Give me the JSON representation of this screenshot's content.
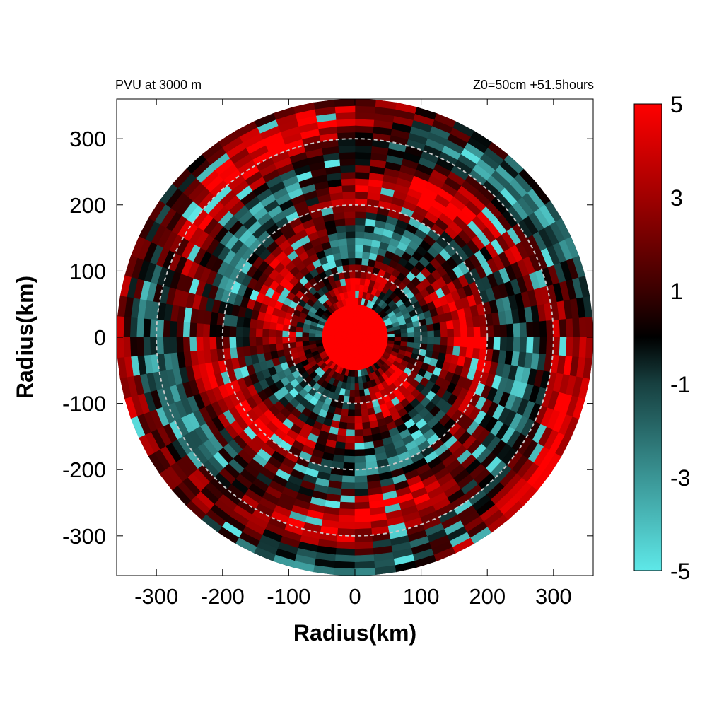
{
  "chart_data": {
    "type": "heatmap",
    "title_left": "PVU at  3000 m",
    "title_right": "Z0=50cm  +51.5hours",
    "xlabel": "Radius(km)",
    "ylabel": "Radius(km)",
    "xlim": [
      -360,
      360
    ],
    "ylim": [
      -360,
      360
    ],
    "x_ticks": [
      -300,
      -200,
      -100,
      0,
      100,
      200,
      300
    ],
    "y_ticks": [
      300,
      200,
      100,
      0,
      -100,
      -200,
      -300
    ],
    "domain_radius_km": 360,
    "dashed_circles_km": [
      100,
      200,
      300
    ],
    "grid": false,
    "colorbar": {
      "range": [
        -5,
        5
      ],
      "ticks": [
        5,
        3,
        1,
        -1,
        -3,
        -5
      ],
      "placement": "right",
      "colors": {
        "high": "#ff0000",
        "mid_high": "#8b0000",
        "zero": "#000000",
        "mid_low": "#2f6f6f",
        "low": "#5ee8e8"
      }
    },
    "field": {
      "center_core_value": 5,
      "core_radius_km": 50,
      "background_value": 1.2,
      "pattern": "spiral rainbands of high positive PVU with scattered negative (cyan) patches"
    }
  }
}
